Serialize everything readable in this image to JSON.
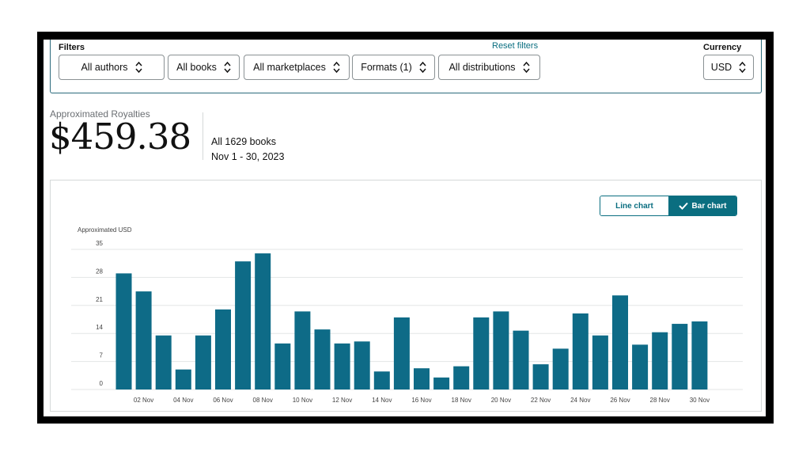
{
  "filters": {
    "label": "Filters",
    "reset_label": "Reset filters",
    "currency_label": "Currency",
    "selects": {
      "authors": "All authors",
      "books": "All books",
      "marketplaces": "All marketplaces",
      "formats": "Formats (1)",
      "distributions": "All distributions",
      "currency": "USD"
    }
  },
  "summary": {
    "caption": "Approximated Royalties",
    "value": "$459.38",
    "books": "All 1629 books",
    "dates": "Nov 1 - 30, 2023"
  },
  "chart_toggle": {
    "line_label": "Line chart",
    "bar_label": "Bar chart",
    "selected": "bar"
  },
  "colors": {
    "bar": "#0e6b87",
    "accent": "#0a6e80"
  },
  "chart_data": {
    "type": "bar",
    "ylabel": "Approximated USD",
    "ylim": [
      0,
      35
    ],
    "yticks": [
      0,
      7,
      14,
      21,
      28,
      35
    ],
    "grid": true,
    "categories": [
      "01 Nov",
      "02 Nov",
      "03 Nov",
      "04 Nov",
      "05 Nov",
      "06 Nov",
      "07 Nov",
      "08 Nov",
      "09 Nov",
      "10 Nov",
      "11 Nov",
      "12 Nov",
      "13 Nov",
      "14 Nov",
      "15 Nov",
      "16 Nov",
      "17 Nov",
      "18 Nov",
      "19 Nov",
      "20 Nov",
      "21 Nov",
      "22 Nov",
      "23 Nov",
      "24 Nov",
      "25 Nov",
      "26 Nov",
      "27 Nov",
      "28 Nov",
      "29 Nov",
      "30 Nov"
    ],
    "x_tick_labels": [
      "02 Nov",
      "04 Nov",
      "06 Nov",
      "08 Nov",
      "10 Nov",
      "12 Nov",
      "14 Nov",
      "16 Nov",
      "18 Nov",
      "20 Nov",
      "22 Nov",
      "24 Nov",
      "26 Nov",
      "28 Nov",
      "30 Nov"
    ],
    "values": [
      29,
      24.5,
      13.5,
      5,
      13.5,
      20,
      32,
      34,
      11.5,
      19.5,
      15,
      11.5,
      12,
      4.5,
      18,
      5.3,
      3,
      5.8,
      18,
      19.5,
      14.7,
      6.3,
      10.2,
      19,
      13.5,
      23.5,
      11.2,
      14.3,
      16.4,
      17
    ]
  }
}
